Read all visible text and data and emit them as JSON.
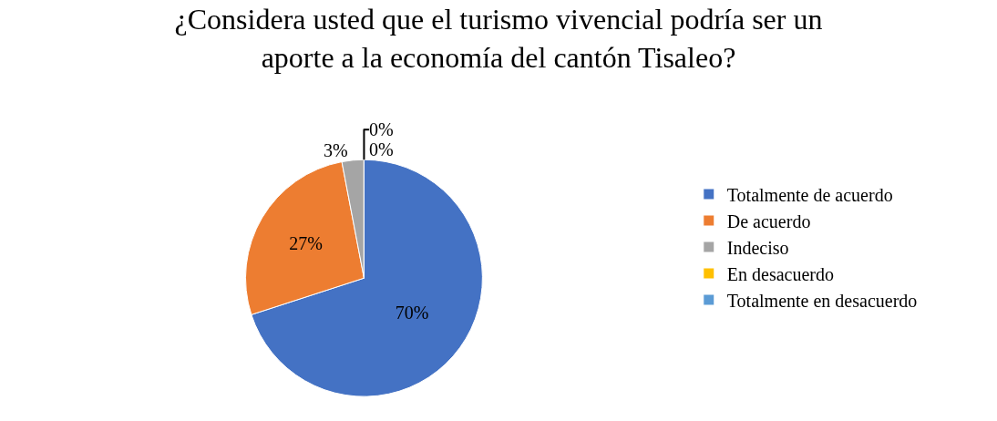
{
  "chart_data": {
    "type": "pie",
    "title": "¿Considera usted que el turismo vivencial podría ser un\naporte a la economía del cantón Tisaleo?",
    "categories": [
      "Totalmente de acuerdo",
      "De acuerdo",
      "Indeciso",
      "En desacuerdo",
      "Totalmente en desacuerdo"
    ],
    "values": [
      70,
      27,
      3,
      0,
      0
    ],
    "colors": [
      "#4472c4",
      "#ed7d31",
      "#a5a5a5",
      "#ffc000",
      "#5b9bd5"
    ],
    "value_labels": [
      "70%",
      "27%",
      "3%",
      "0%",
      "0%"
    ],
    "legend": "right"
  }
}
